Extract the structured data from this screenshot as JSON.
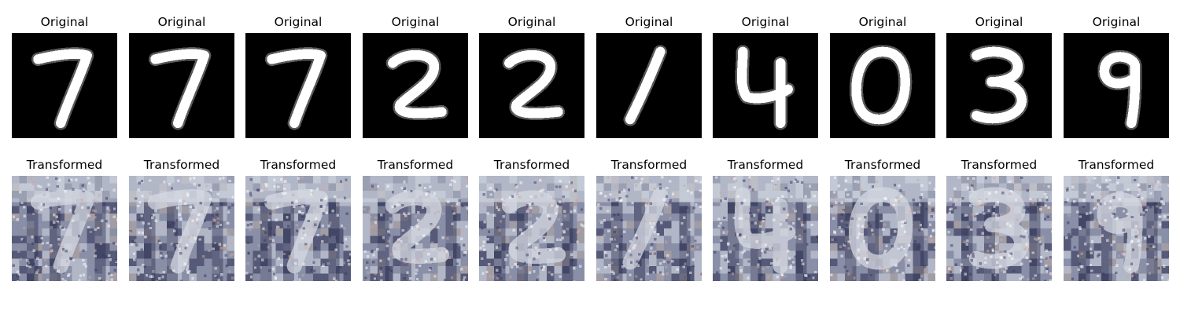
{
  "rows": [
    {
      "name": "original",
      "title": "Original",
      "digits": [
        "7",
        "7",
        "7",
        "2",
        "2",
        "1",
        "4",
        "0",
        "3",
        "9"
      ],
      "background": "#000000",
      "stroke": "#ffffff"
    },
    {
      "name": "transformed",
      "title": "Transformed",
      "digits": [
        "7",
        "7",
        "7",
        "2",
        "2",
        "1",
        "4",
        "0",
        "3",
        "9"
      ],
      "colors": {
        "light": "#d4d8e2",
        "mid": "#8a8fa8",
        "dark": "#2c3050",
        "accent": "#b7a9a0"
      }
    }
  ]
}
